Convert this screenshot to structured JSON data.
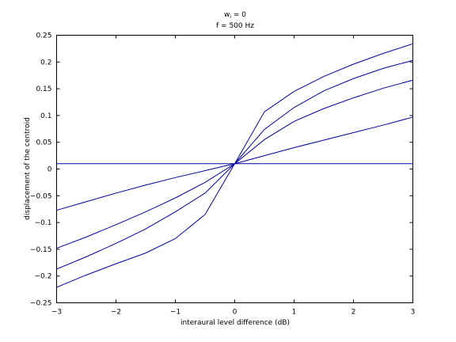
{
  "chart_data": {
    "type": "line",
    "title_line1_main": "w",
    "title_line1_sub": "i",
    "title_line1_rest": " = 0",
    "title_line2": "f = 500 Hz",
    "xlabel": "interaural level difference (dB)",
    "ylabel": "displacement of the centroid",
    "xlim": [
      -3,
      3
    ],
    "ylim": [
      -0.25,
      0.25
    ],
    "xticks": [
      -3,
      -2,
      -1,
      0,
      1,
      2,
      3
    ],
    "xtick_labels": [
      "−3",
      "−2",
      "−1",
      "0",
      "1",
      "2",
      "3"
    ],
    "yticks": [
      -0.25,
      -0.2,
      -0.15,
      -0.1,
      -0.05,
      0,
      0.05,
      0.1,
      0.15,
      0.2,
      0.25
    ],
    "ytick_labels": [
      "−0.25",
      "−0.2",
      "−0.15",
      "−0.1",
      "−0.05",
      "0",
      "0.05",
      "0.1",
      "0.15",
      "0.2",
      "0.25"
    ],
    "grid": false,
    "line_color": "#0000a0",
    "x": [
      -3,
      -2.5,
      -2,
      -1.5,
      -1,
      -0.5,
      0,
      0.5,
      1,
      1.5,
      2,
      2.5,
      3
    ],
    "series": [
      {
        "values": [
          0.01,
          0.01,
          0.01,
          0.01,
          0.01,
          0.01,
          0.01,
          0.01,
          0.01,
          0.01,
          0.01,
          0.01,
          0.01
        ]
      },
      {
        "values": [
          -0.077,
          -0.061,
          -0.045,
          -0.03,
          -0.016,
          -0.003,
          0.01,
          0.025,
          0.04,
          0.054,
          0.068,
          0.082,
          0.097
        ]
      },
      {
        "values": [
          -0.148,
          -0.127,
          -0.104,
          -0.08,
          -0.054,
          -0.025,
          0.01,
          0.055,
          0.089,
          0.113,
          0.133,
          0.151,
          0.166
        ]
      },
      {
        "values": [
          -0.187,
          -0.164,
          -0.139,
          -0.112,
          -0.08,
          -0.045,
          0.01,
          0.074,
          0.115,
          0.146,
          0.169,
          0.188,
          0.203
        ]
      },
      {
        "values": [
          -0.221,
          -0.198,
          -0.177,
          -0.157,
          -0.13,
          -0.085,
          0.01,
          0.107,
          0.145,
          0.173,
          0.196,
          0.216,
          0.234
        ]
      }
    ]
  }
}
